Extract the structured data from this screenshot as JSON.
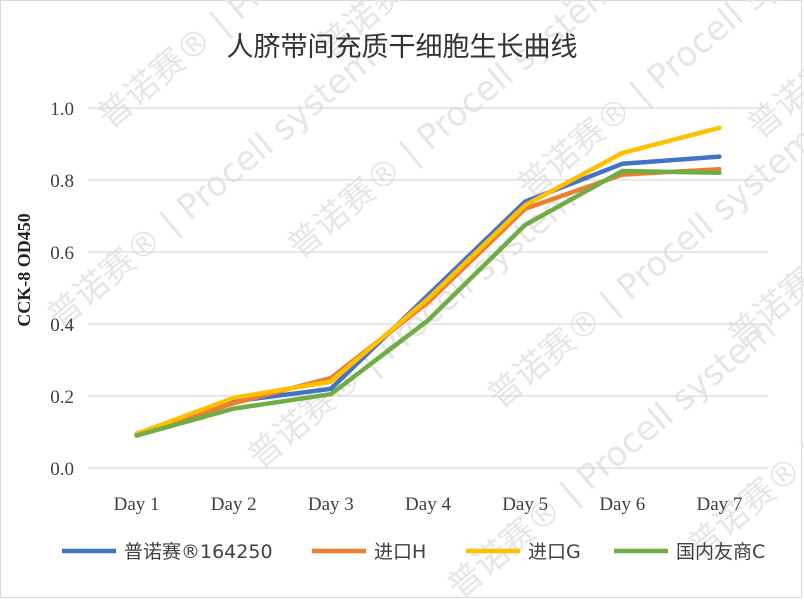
{
  "chart_data": {
    "type": "line",
    "title": "人脐带间充质干细胞生长曲线",
    "ylabel": "CCK-8 OD450",
    "xlabel": "",
    "categories": [
      "Day 1",
      "Day 2",
      "Day 3",
      "Day 4",
      "Day 5",
      "Day 6",
      "Day 7"
    ],
    "ylim": [
      0,
      1.0
    ],
    "yticks": [
      "0.0",
      "0.2",
      "0.4",
      "0.6",
      "0.8",
      "1.0"
    ],
    "grid": true,
    "legend_position": "bottom",
    "series": [
      {
        "name": "普诺赛®164250",
        "color": "#4472C4",
        "values": [
          0.095,
          0.185,
          0.22,
          0.48,
          0.74,
          0.845,
          0.865
        ]
      },
      {
        "name": "进口H",
        "color": "#ED7D31",
        "values": [
          0.095,
          0.18,
          0.25,
          0.46,
          0.72,
          0.815,
          0.83
        ]
      },
      {
        "name": "进口G",
        "color": "#FFC000",
        "values": [
          0.095,
          0.195,
          0.24,
          0.47,
          0.73,
          0.875,
          0.945
        ]
      },
      {
        "name": "国内友商C",
        "color": "#70AD47",
        "values": [
          0.09,
          0.165,
          0.205,
          0.41,
          0.675,
          0.825,
          0.82
        ]
      }
    ]
  },
  "watermark": {
    "text": "普诺赛® | Procell system"
  }
}
